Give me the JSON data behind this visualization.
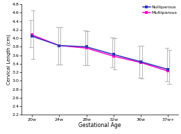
{
  "x_labels": [
    "20w",
    "24w",
    "28w",
    "32w",
    "36w",
    "37w+"
  ],
  "x_positions": [
    0,
    1,
    2,
    3,
    4,
    5
  ],
  "nulliparous_y": [
    4.05,
    3.83,
    3.8,
    3.62,
    3.45,
    3.27
  ],
  "multiparous_y": [
    4.08,
    3.83,
    3.77,
    3.58,
    3.43,
    3.23
  ],
  "nulliparous_yerr_upper": [
    0.38,
    0.44,
    0.38,
    0.4,
    0.38,
    0.5
  ],
  "nulliparous_yerr_lower": [
    0.26,
    0.44,
    0.43,
    0.3,
    0.38,
    0.28
  ],
  "multiparous_yerr_upper": [
    0.57,
    0.44,
    0.4,
    0.42,
    0.4,
    0.5
  ],
  "multiparous_yerr_lower": [
    0.57,
    0.44,
    0.4,
    0.32,
    0.37,
    0.3
  ],
  "nulliparous_color": "#3333bb",
  "multiparous_color": "#ff00cc",
  "error_color": "#bbbbbb",
  "ylabel": "Cervical Length (cm)",
  "xlabel": "Gestational Age",
  "ylim": [
    2.2,
    4.8
  ],
  "yticks": [
    2.2,
    2.4,
    2.6,
    2.8,
    3.0,
    3.2,
    3.4,
    3.6,
    3.8,
    4.0,
    4.2,
    4.4,
    4.6,
    4.8
  ],
  "legend_nulliparous": "Nulliparous",
  "legend_multiparous": "Multiparous"
}
